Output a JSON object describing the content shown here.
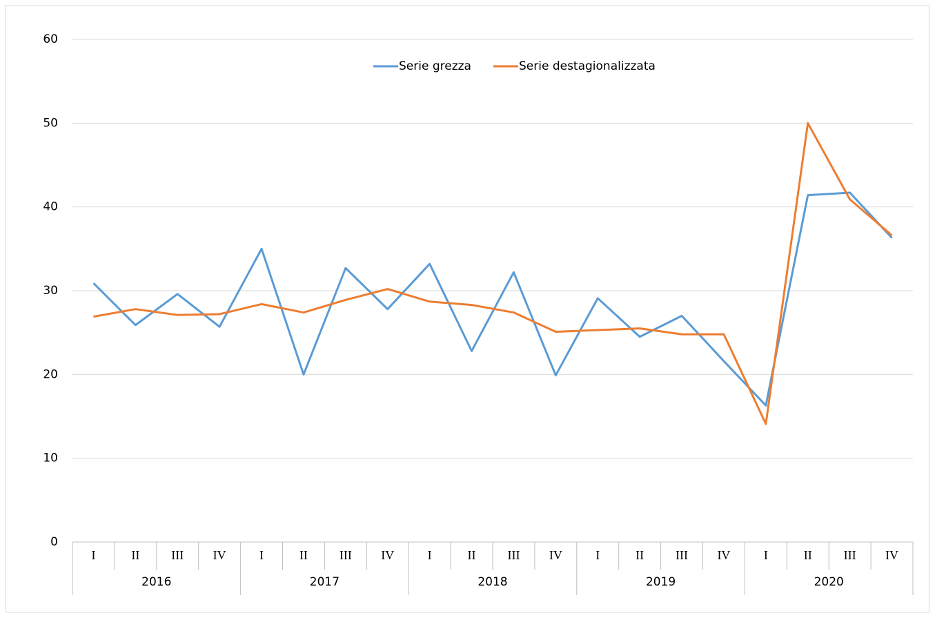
{
  "chart_data": {
    "type": "line",
    "categories": [
      "I",
      "II",
      "III",
      "IV",
      "I",
      "II",
      "III",
      "IV",
      "I",
      "II",
      "III",
      "IV",
      "I",
      "II",
      "III",
      "IV",
      "I",
      "II",
      "III",
      "IV"
    ],
    "years": [
      "2016",
      "2017",
      "2018",
      "2019",
      "2020"
    ],
    "series": [
      {
        "name": "Serie grezza",
        "color": "#5b9bd5",
        "values": [
          30.9,
          25.9,
          29.6,
          25.7,
          35.0,
          20.0,
          32.7,
          27.8,
          33.2,
          22.8,
          32.2,
          19.9,
          29.1,
          24.5,
          27.0,
          21.6,
          16.3,
          41.4,
          41.7,
          36.3
        ]
      },
      {
        "name": "Serie destagionalizzata",
        "color": "#ed7d31",
        "values": [
          26.9,
          27.8,
          27.1,
          27.2,
          28.4,
          27.4,
          28.9,
          30.2,
          28.7,
          28.3,
          27.4,
          25.1,
          25.3,
          25.5,
          24.8,
          24.8,
          14.1,
          50.0,
          40.9,
          36.6
        ]
      }
    ],
    "ylim": [
      0,
      60
    ],
    "yticks": [
      0,
      10,
      20,
      30,
      40,
      50,
      60
    ],
    "grid": true,
    "legend": "top"
  }
}
